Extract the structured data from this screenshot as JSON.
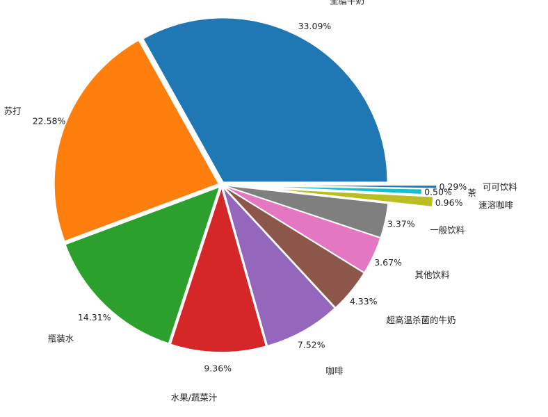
{
  "chart_data": {
    "type": "pie",
    "title": "",
    "start_angle_deg": 0,
    "direction": "counterclockwise",
    "slices": [
      {
        "label": "全脂牛奶",
        "pct_label": "33.09%",
        "value": 33.09,
        "color": "#1f77b4",
        "explode": 0.02
      },
      {
        "label": "苏打",
        "pct_label": "22.58%",
        "value": 22.58,
        "color": "#ff7f0e",
        "explode": 0.02
      },
      {
        "label": "瓶装水",
        "pct_label": "14.31%",
        "value": 14.31,
        "color": "#2ca02c",
        "explode": 0.02
      },
      {
        "label": "水果/蔬菜汁",
        "pct_label": "9.36%",
        "value": 9.36,
        "color": "#d62728",
        "explode": 0.02
      },
      {
        "label": "咖啡",
        "pct_label": "7.52%",
        "value": 7.52,
        "color": "#9467bd",
        "explode": 0.02
      },
      {
        "label": "超高温杀菌的牛奶",
        "pct_label": "4.33%",
        "value": 4.33,
        "color": "#8c564b",
        "explode": 0.02
      },
      {
        "label": "其他饮料",
        "pct_label": "3.67%",
        "value": 3.67,
        "color": "#e377c2",
        "explode": 0.02
      },
      {
        "label": "一般饮料",
        "pct_label": "3.37%",
        "value": 3.37,
        "color": "#7f7f7f",
        "explode": 0.02
      },
      {
        "label": "速溶咖啡",
        "pct_label": "0.96%",
        "value": 0.96,
        "color": "#bcbd22",
        "explode": 0.29
      },
      {
        "label": "茶",
        "pct_label": "0.50%",
        "value": 0.5,
        "color": "#17becf",
        "explode": 0.22
      },
      {
        "label": "可可饮料",
        "pct_label": "0.29%",
        "value": 0.29,
        "color": "#1f77b4",
        "explode": 0.31
      }
    ]
  }
}
